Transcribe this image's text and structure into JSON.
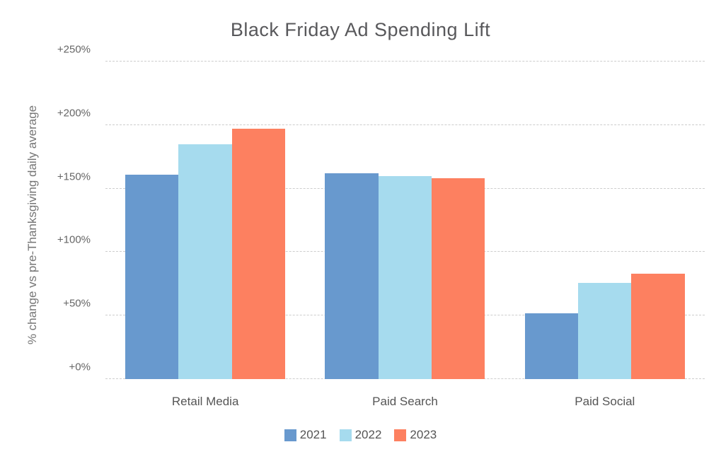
{
  "chart_data": {
    "type": "bar",
    "title": "Black Friday Ad Spending Lift",
    "ylabel": "% change vs pre-Thanksgiving daily average",
    "xlabel": "",
    "categories": [
      "Retail Media",
      "Paid Search",
      "Paid Social"
    ],
    "series": [
      {
        "name": "2021",
        "color": "#6899CE",
        "values": [
          161,
          162,
          52
        ]
      },
      {
        "name": "2022",
        "color": "#A6DBEE",
        "values": [
          185,
          160,
          76
        ]
      },
      {
        "name": "2023",
        "color": "#FD8060",
        "values": [
          197,
          158,
          83
        ]
      }
    ],
    "ylim": [
      0,
      250
    ],
    "yticks": [
      {
        "value": 0,
        "label": "+0%"
      },
      {
        "value": 50,
        "label": "+50%"
      },
      {
        "value": 100,
        "label": "+100%"
      },
      {
        "value": 150,
        "label": "+150%"
      },
      {
        "value": 200,
        "label": "+200%"
      },
      {
        "value": 250,
        "label": "+250%"
      }
    ],
    "grid": "horizontal-dashed",
    "legend_position": "bottom",
    "legend": [
      "2021",
      "2022",
      "2023"
    ]
  },
  "style": {
    "background": "#ffffff",
    "title_color": "#58585b",
    "axis_text_color": "#666666",
    "category_text_color": "#555555",
    "gridline_color": "#cdcdcd"
  }
}
